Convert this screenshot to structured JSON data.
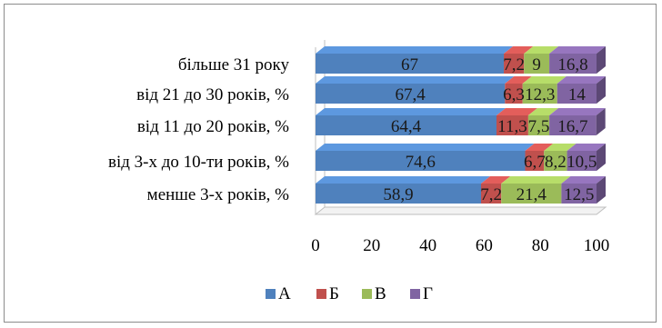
{
  "chart_data": {
    "type": "bar",
    "orientation": "horizontal",
    "stacked": true,
    "style": "3d",
    "categories": [
      "більше 31 року",
      "від 21 до 30 років, %",
      "від 11 до 20 років, %",
      "від 3-х до 10-ти років, %",
      "менше 3-х років, %"
    ],
    "series": [
      {
        "name": "А",
        "color": "#4f81bd",
        "values": [
          67,
          67.4,
          64.4,
          74.6,
          58.9
        ],
        "labels": [
          "67",
          "67,4",
          "64,4",
          "74,6",
          "58,9"
        ]
      },
      {
        "name": "Б",
        "color": "#c0504d",
        "values": [
          7.2,
          6.3,
          11.3,
          6.7,
          7.2
        ],
        "labels": [
          "7,2",
          "6,3",
          "11,3",
          "6,7",
          "7,2"
        ]
      },
      {
        "name": "В",
        "color": "#9bbb59",
        "values": [
          9,
          12.3,
          7.5,
          8.2,
          21.4
        ],
        "labels": [
          "9",
          "12,3",
          "7,5",
          "8,2",
          "21,4"
        ]
      },
      {
        "name": "Г",
        "color": "#8064a2",
        "values": [
          16.8,
          14,
          16.7,
          10.5,
          12.5
        ],
        "labels": [
          "16,8",
          "14",
          "16,7",
          "10,5",
          "12,5"
        ]
      }
    ],
    "xlim": [
      0,
      100
    ],
    "ticks": [
      "0",
      "20",
      "40",
      "60",
      "80",
      "100"
    ],
    "tick_values": [
      0,
      20,
      40,
      60,
      80,
      100
    ],
    "legend_position": "bottom",
    "grid": false
  }
}
